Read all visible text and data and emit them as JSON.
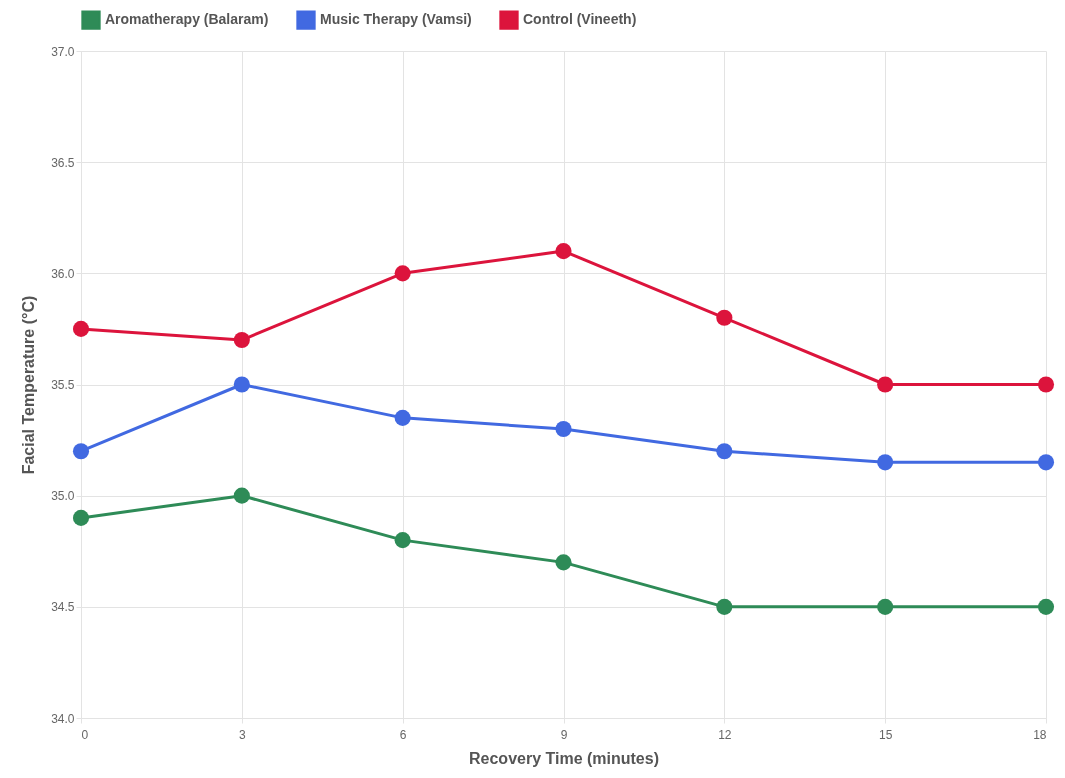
{
  "chart_data": {
    "type": "line",
    "xlabel": "Recovery Time (minutes)",
    "ylabel": "Facial Temperature (°C)",
    "x": [
      0,
      3,
      6,
      9,
      12,
      15,
      18
    ],
    "series": [
      {
        "name": "Aromatherapy (Balaram)",
        "color": "#2e8b57",
        "values": [
          34.9,
          35.0,
          34.8,
          34.7,
          34.5,
          34.5,
          34.5
        ]
      },
      {
        "name": "Music Therapy (Vamsi)",
        "color": "#4169e1",
        "values": [
          35.2,
          35.5,
          35.35,
          35.3,
          35.2,
          35.15,
          35.15
        ]
      },
      {
        "name": "Control (Vineeth)",
        "color": "#dc143c",
        "values": [
          35.75,
          35.7,
          36.0,
          36.1,
          35.8,
          35.5,
          35.5
        ]
      }
    ],
    "xlim": [
      0,
      18
    ],
    "xticks": [
      0,
      3,
      6,
      9,
      12,
      15,
      18
    ],
    "ylim": [
      34,
      37
    ],
    "yticks": [
      {
        "value": 34,
        "label": "34.0"
      },
      34.5,
      {
        "value": 35,
        "label": "35.0"
      },
      35.5,
      {
        "value": 36,
        "label": "36.0"
      },
      36.5,
      {
        "value": 37,
        "label": "37.0"
      }
    ],
    "grid": true,
    "legend": "top",
    "marker": "circle",
    "line_style": "solid"
  }
}
